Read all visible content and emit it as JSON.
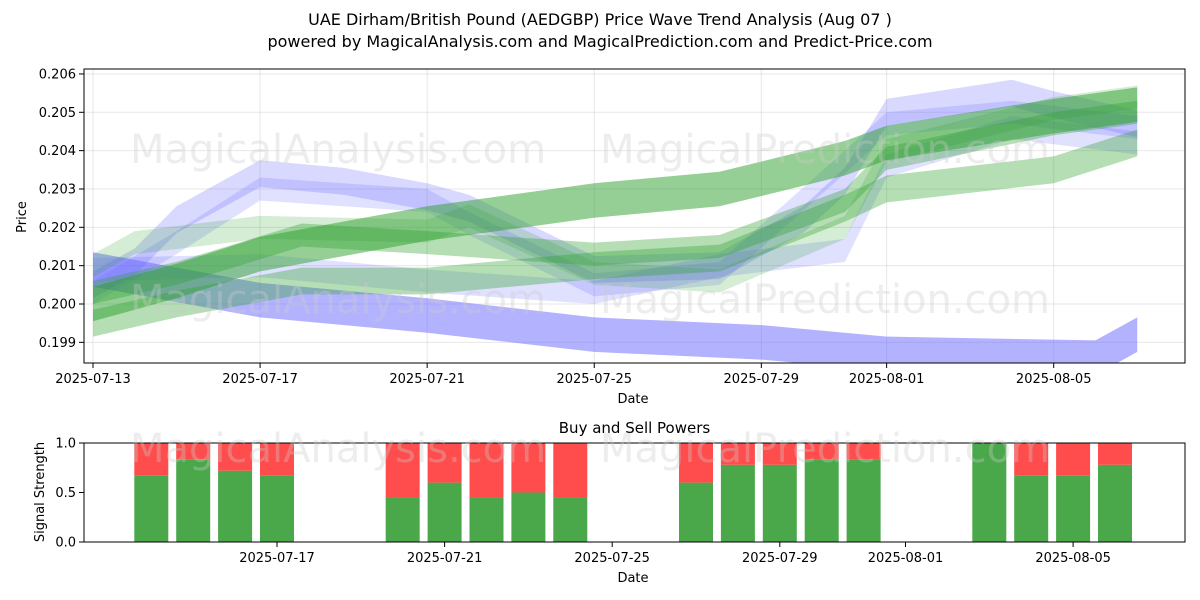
{
  "title_line1": "UAE Dirham/British Pound (AEDGBP) Price Wave Trend Analysis (Aug 07 )",
  "title_line2": "powered by MagicalAnalysis.com and MagicalPrediction.com and Predict-Price.com",
  "watermarks": [
    "MagicalAnalysis.com",
    "MagicalPrediction.com"
  ],
  "colors": {
    "blue": "#6666ff",
    "green": "#2ca02c",
    "buy": "#4aa84a",
    "sell": "#ff4c4c"
  },
  "chart_data": [
    {
      "type": "area",
      "title": "",
      "xlabel": "Date",
      "ylabel": "Price",
      "xlim": [
        "2025-07-13",
        "2025-08-08"
      ],
      "ylim": [
        0.1984,
        0.2061
      ],
      "x_ticks": [
        "2025-07-13",
        "2025-07-17",
        "2025-07-21",
        "2025-07-25",
        "2025-07-29",
        "2025-08-01",
        "2025-08-05"
      ],
      "y_ticks": [
        "0.199",
        "0.200",
        "0.201",
        "0.202",
        "0.203",
        "0.204",
        "0.205",
        "0.206"
      ],
      "grid": true,
      "series": [
        {
          "color": "blue",
          "x": [
            "2025-07-13",
            "2025-07-14",
            "2025-07-15",
            "2025-07-17",
            "2025-07-19",
            "2025-07-21",
            "2025-07-22",
            "2025-07-25",
            "2025-07-28",
            "2025-07-30",
            "2025-07-31",
            "2025-08-01",
            "2025-08-04",
            "2025-08-05",
            "2025-08-07"
          ],
          "y": [
            0.2005,
            0.2011,
            0.2022,
            0.2034,
            0.2032,
            0.2028,
            0.2025,
            0.2009,
            0.201,
            0.2022,
            0.2032,
            0.205,
            0.2055,
            0.2052,
            0.2047
          ],
          "width": 0.0007,
          "opacity": 0.25
        },
        {
          "color": "blue",
          "x": [
            "2025-07-13",
            "2025-07-15",
            "2025-07-17",
            "2025-07-21",
            "2025-07-22",
            "2025-07-25",
            "2025-07-28",
            "2025-07-31",
            "2025-08-01",
            "2025-08-04",
            "2025-08-07"
          ],
          "y": [
            0.2003,
            0.2016,
            0.203,
            0.2027,
            0.2021,
            0.2005,
            0.2008,
            0.2037,
            0.2047,
            0.205,
            0.2046
          ],
          "width": 0.0006,
          "opacity": 0.2
        },
        {
          "color": "blue",
          "x": [
            "2025-07-13",
            "2025-07-17",
            "2025-07-21",
            "2025-07-25",
            "2025-07-28",
            "2025-07-31",
            "2025-08-01",
            "2025-08-04",
            "2025-08-07"
          ],
          "y": [
            0.2009,
            0.201,
            0.2006,
            0.2003,
            0.201,
            0.2014,
            0.2036,
            0.2046,
            0.2042
          ],
          "width": 0.0006,
          "opacity": 0.2
        },
        {
          "color": "blue",
          "x": [
            "2025-07-13",
            "2025-07-17",
            "2025-07-21",
            "2025-07-25",
            "2025-07-29",
            "2025-08-01",
            "2025-08-06",
            "2025-08-07"
          ],
          "y": [
            0.2009,
            0.2001,
            0.1997,
            0.1992,
            0.199,
            0.1987,
            0.1986,
            0.1992
          ],
          "width": 0.0009,
          "opacity": 0.5
        },
        {
          "color": "green",
          "x": [
            "2025-07-13",
            "2025-07-15",
            "2025-07-17",
            "2025-07-21",
            "2025-07-25",
            "2025-07-28",
            "2025-07-31",
            "2025-08-01",
            "2025-08-05",
            "2025-08-07"
          ],
          "y": [
            0.2,
            0.2006,
            0.2013,
            0.2021,
            0.2027,
            0.203,
            0.2038,
            0.2042,
            0.2049,
            0.2052
          ],
          "width": 0.0009,
          "opacity": 0.5
        },
        {
          "color": "green",
          "x": [
            "2025-07-13",
            "2025-07-15",
            "2025-07-18",
            "2025-07-21",
            "2025-07-25",
            "2025-07-28",
            "2025-07-31",
            "2025-08-01",
            "2025-08-05",
            "2025-08-07"
          ],
          "y": [
            0.2003,
            0.2008,
            0.2018,
            0.2016,
            0.2013,
            0.2015,
            0.2027,
            0.2038,
            0.2047,
            0.205
          ],
          "width": 0.0006,
          "opacity": 0.35
        },
        {
          "color": "green",
          "x": [
            "2025-07-13",
            "2025-07-15",
            "2025-07-18",
            "2025-07-21",
            "2025-07-25",
            "2025-07-28",
            "2025-07-31",
            "2025-08-01",
            "2025-08-05",
            "2025-08-07"
          ],
          "y": [
            0.1995,
            0.2,
            0.2006,
            0.2006,
            0.201,
            0.2012,
            0.2025,
            0.203,
            0.2035,
            0.2042
          ],
          "width": 0.0007,
          "opacity": 0.35
        },
        {
          "color": "green",
          "x": [
            "2025-07-13",
            "2025-07-14",
            "2025-07-17",
            "2025-07-21",
            "2025-07-22",
            "2025-07-25",
            "2025-07-28",
            "2025-07-31",
            "2025-08-01",
            "2025-08-05",
            "2025-08-07"
          ],
          "y": [
            0.201,
            0.2016,
            0.202,
            0.2019,
            0.2023,
            0.2008,
            0.2006,
            0.202,
            0.204,
            0.2051,
            0.2054
          ],
          "width": 0.0006,
          "opacity": 0.2
        }
      ]
    },
    {
      "type": "bar",
      "title": "Buy and Sell Powers",
      "xlabel": "Date",
      "ylabel": "Signal Strength",
      "ylim": [
        0,
        1.0
      ],
      "y_ticks": [
        "0.0",
        "0.5",
        "1.0"
      ],
      "x_ticks": [
        "2025-07-17",
        "2025-07-21",
        "2025-07-25",
        "2025-07-29",
        "2025-08-01",
        "2025-08-05"
      ],
      "x": [
        "2025-07-14",
        "2025-07-15",
        "2025-07-16",
        "2025-07-17",
        "2025-07-20",
        "2025-07-21",
        "2025-07-22",
        "2025-07-23",
        "2025-07-24",
        "2025-07-27",
        "2025-07-28",
        "2025-07-29",
        "2025-07-30",
        "2025-07-31",
        "2025-08-03",
        "2025-08-04",
        "2025-08-05",
        "2025-08-06"
      ],
      "series": [
        {
          "name": "Buy",
          "color": "buy",
          "values": [
            0.67,
            0.83,
            0.72,
            0.67,
            0.45,
            0.6,
            0.45,
            0.5,
            0.45,
            0.6,
            0.78,
            0.78,
            0.83,
            0.83,
            1.0,
            0.67,
            0.67,
            0.78
          ]
        },
        {
          "name": "Sell",
          "color": "sell",
          "values": [
            0.33,
            0.17,
            0.28,
            0.33,
            0.55,
            0.4,
            0.55,
            0.5,
            0.55,
            0.4,
            0.22,
            0.22,
            0.17,
            0.17,
            0.0,
            0.33,
            0.33,
            0.22
          ]
        }
      ]
    }
  ]
}
